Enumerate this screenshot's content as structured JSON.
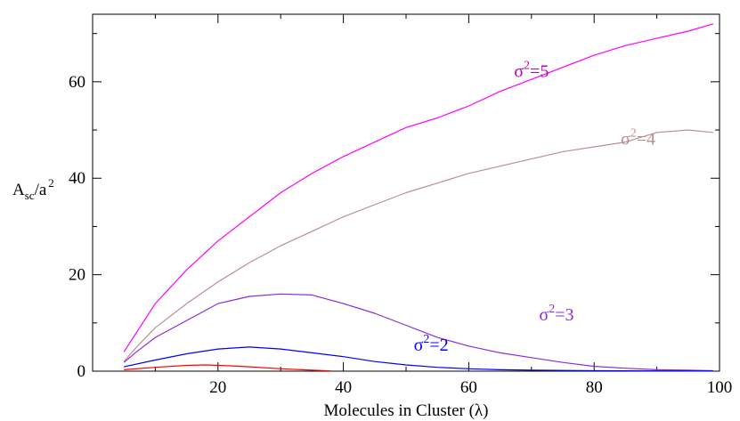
{
  "chart_data": {
    "type": "line",
    "xlabel": "Molecules in Cluster (λ)",
    "ylabel": {
      "main": "A",
      "sub": "sc",
      "rest": "/a",
      "sup": "2"
    },
    "xlim": [
      0,
      100
    ],
    "ylim": [
      0,
      74
    ],
    "xticks": [
      20,
      40,
      60,
      80,
      100
    ],
    "yticks": [
      0,
      20,
      40,
      60
    ],
    "grid": false,
    "series": [
      {
        "color": "#ff00ff",
        "x": [
          5,
          7,
          10,
          15,
          20,
          25,
          30,
          35,
          40,
          45,
          50,
          55,
          60,
          65,
          70,
          75,
          80,
          85,
          90,
          95,
          99
        ],
        "y": [
          4,
          8,
          14,
          21,
          27,
          32,
          37,
          41,
          44.5,
          47.5,
          50.5,
          52.5,
          55,
          58,
          60.5,
          63,
          65.5,
          67.5,
          69,
          70.5,
          72
        ]
      },
      {
        "color": "#bc8f8f",
        "x": [
          5,
          7,
          10,
          15,
          20,
          25,
          30,
          35,
          40,
          45,
          50,
          55,
          60,
          65,
          70,
          75,
          80,
          85,
          90,
          95,
          99
        ],
        "y": [
          2,
          5,
          9,
          14,
          18.5,
          22.5,
          26,
          29,
          32,
          34.5,
          37,
          39,
          41,
          42.5,
          44,
          45.5,
          46.5,
          47.5,
          49.5,
          50,
          49.5
        ]
      },
      {
        "color": "#8a2be2",
        "x": [
          5,
          7,
          10,
          15,
          20,
          25,
          30,
          35,
          40,
          45,
          50,
          55,
          60,
          65,
          70,
          75,
          80,
          85,
          90,
          95,
          99
        ],
        "y": [
          1.8,
          4,
          7,
          10.5,
          14,
          15.5,
          16,
          15.8,
          14,
          12,
          9.5,
          7,
          5.2,
          3.8,
          2.8,
          1.8,
          1,
          0.6,
          0.3,
          0.2,
          0.1
        ]
      },
      {
        "color": "#0000ff",
        "x": [
          5,
          10,
          15,
          20,
          25,
          30,
          35,
          40,
          45,
          50,
          55,
          60,
          65,
          70,
          80,
          90,
          99
        ],
        "y": [
          0.9,
          2.3,
          3.6,
          4.6,
          5,
          4.6,
          3.8,
          3,
          2,
          1.3,
          0.8,
          0.5,
          0.3,
          0.2,
          0.1,
          0.05,
          0.02
        ]
      },
      {
        "color": "#ff0000",
        "x": [
          5,
          10,
          15,
          18,
          22,
          25,
          30,
          35,
          38
        ],
        "y": [
          0.3,
          0.8,
          1.2,
          1.3,
          1.1,
          0.9,
          0.5,
          0.2,
          0.05
        ]
      }
    ],
    "annotations": [
      {
        "base": "σ",
        "sup": "2",
        "rest": "=5",
        "color": "#bb00bb",
        "x": 70,
        "y": 61
      },
      {
        "base": "σ",
        "sup": "2",
        "rest": "=4",
        "color": "#bc8f8f",
        "x": 87,
        "y": 47
      },
      {
        "base": "σ",
        "sup": "2",
        "rest": "=3",
        "color": "#8a2be2",
        "x": 74,
        "y": 10.5
      },
      {
        "base": "σ",
        "sup": "2",
        "rest": "=2",
        "color": "#0000ff",
        "x": 54,
        "y": 4.2
      }
    ]
  }
}
